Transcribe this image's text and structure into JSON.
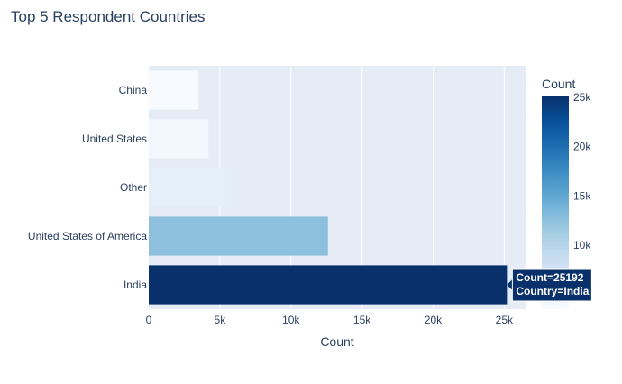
{
  "chart_data": {
    "type": "bar",
    "orientation": "horizontal",
    "title": "Top 5 Respondent Countries",
    "xlabel": "Count",
    "ylabel": "",
    "categories": [
      "India",
      "United States of America",
      "Other",
      "United States",
      "China"
    ],
    "values": [
      25192,
      12600,
      5600,
      4200,
      3500
    ],
    "xlim": [
      0,
      26500
    ],
    "x_ticks": [
      0,
      5000,
      10000,
      15000,
      20000,
      25000
    ],
    "x_tick_labels": [
      "0",
      "5k",
      "10k",
      "15k",
      "20k",
      "25k"
    ],
    "grid": true,
    "colorbar": {
      "title": "Count",
      "ticks": [
        10000,
        15000,
        20000,
        25000
      ],
      "tick_labels": [
        "10k",
        "15k",
        "20k",
        "25k"
      ],
      "range": [
        3500,
        25192
      ],
      "colorscale": [
        "#f7fbff",
        "#deebf7",
        "#c6dbef",
        "#9ecae1",
        "#6baed6",
        "#4292c6",
        "#2171b5",
        "#08519c",
        "#08306b"
      ]
    },
    "hover": {
      "lines": [
        "Count=25192",
        "Country=India"
      ]
    }
  },
  "colors": {
    "plot_bg": "#e5ecf6",
    "grid": "#ffffff",
    "text": "#2a3f5f"
  }
}
